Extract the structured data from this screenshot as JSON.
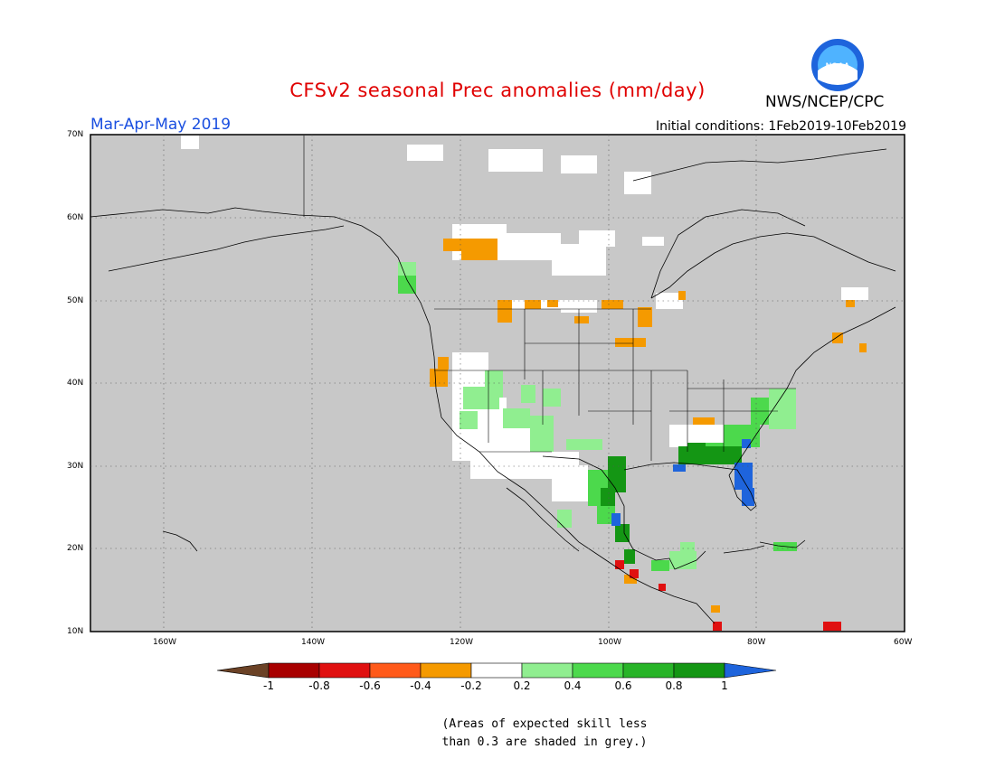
{
  "header": {
    "title": "CFSv2 seasonal Prec anomalies (mm/day)",
    "period": "Mar-Apr-May 2019",
    "initial_conditions": "Initial conditions: 1Feb2019-10Feb2019",
    "agency": "NWS/NCEP/CPC",
    "logo_text": "NOAA"
  },
  "axes": {
    "lat_labels": [
      "70N",
      "60N",
      "50N",
      "40N",
      "30N",
      "20N",
      "10N"
    ],
    "lon_labels": [
      "160W",
      "140W",
      "120W",
      "100W",
      "80W",
      "60W"
    ]
  },
  "colorbar": {
    "ticks": [
      "-1",
      "-0.8",
      "-0.6",
      "-0.4",
      "-0.2",
      "0.2",
      "0.4",
      "0.6",
      "0.8",
      "1"
    ],
    "colors": [
      "#6b4226",
      "#a80000",
      "#e01010",
      "#ff5a1a",
      "#f59a00",
      "#ffffff",
      "#90ee90",
      "#4cd94c",
      "#28b428",
      "#149614",
      "#1e64dc"
    ]
  },
  "note": [
    "(Areas of expected skill less",
    "than 0.3 are shaded in grey.)"
  ],
  "map_colors": {
    "background": "#c8c8c8",
    "no_signal": "#ffffff",
    "orange": "#f59a00",
    "light_green": "#90ee90",
    "green": "#4cd94c",
    "dark_green": "#149614",
    "blue": "#1e64dc",
    "red": "#e01010"
  }
}
